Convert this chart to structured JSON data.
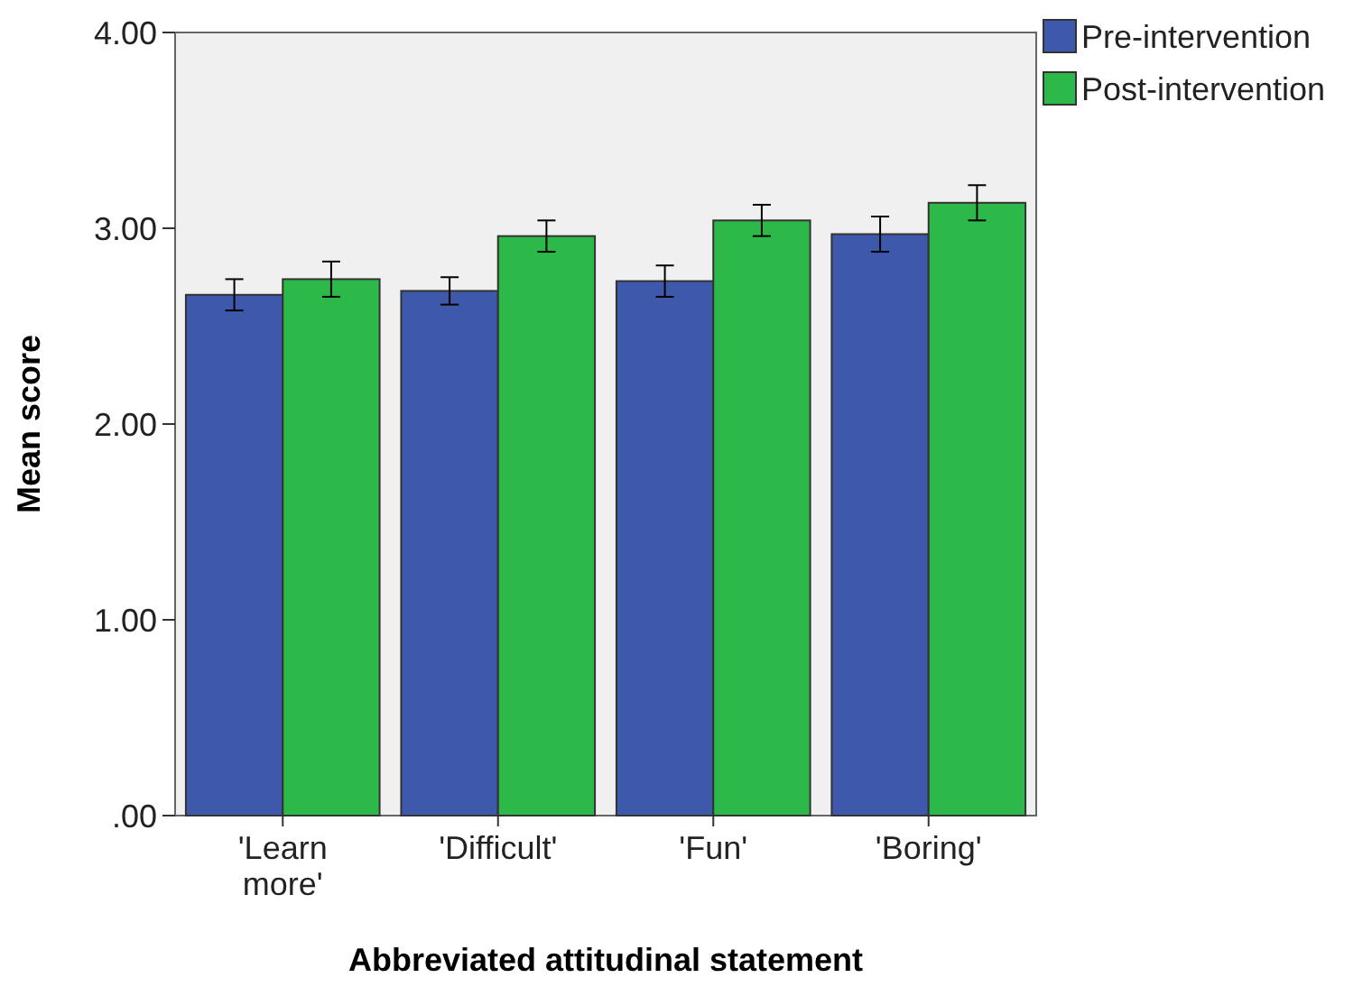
{
  "chart_data": {
    "type": "bar",
    "xlabel": "Abbreviated attitudinal statement",
    "ylabel": "Mean score",
    "categories": [
      "'Learn more'",
      "'Difficult'",
      "'Fun'",
      "'Boring'"
    ],
    "series": [
      {
        "name": "Pre-intervention",
        "color": "#3e58ac",
        "values": [
          2.66,
          2.68,
          2.73,
          2.97
        ],
        "errors": [
          0.08,
          0.07,
          0.08,
          0.09
        ]
      },
      {
        "name": "Post-intervention",
        "color": "#2db84a",
        "values": [
          2.74,
          2.96,
          3.04,
          3.13
        ],
        "errors": [
          0.09,
          0.08,
          0.08,
          0.09
        ]
      }
    ],
    "ylim": [
      0,
      4
    ],
    "yticks": [
      {
        "value": 0,
        "label": ".00"
      },
      {
        "value": 1,
        "label": "1.00"
      },
      {
        "value": 2,
        "label": "2.00"
      },
      {
        "value": 3,
        "label": "3.00"
      },
      {
        "value": 4,
        "label": "4.00"
      }
    ],
    "grid": false,
    "legend": "top right"
  }
}
